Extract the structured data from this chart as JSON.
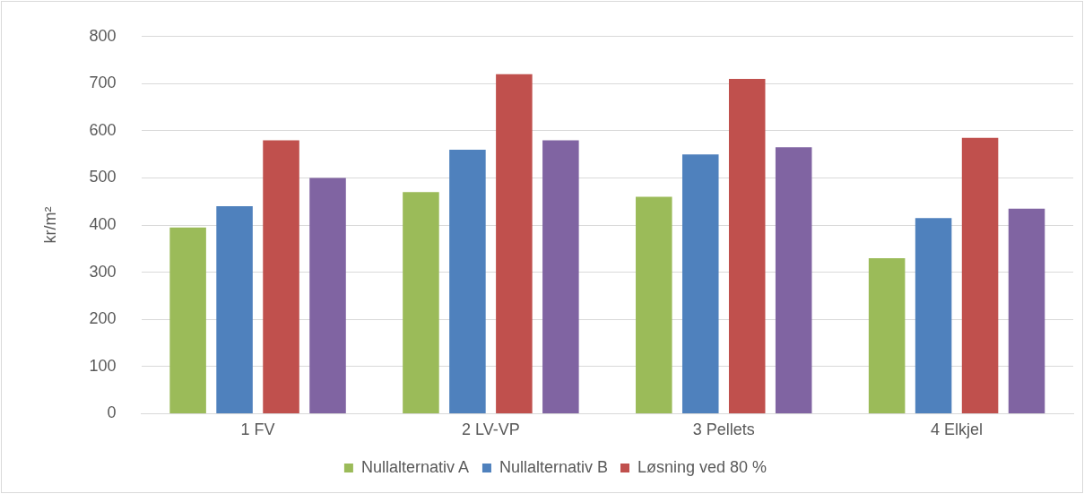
{
  "chart_data": {
    "type": "bar",
    "ylabel": "kr/m²",
    "categories": [
      "1 FV",
      "2 LV-VP",
      "3 Pellets",
      "4 Elkjel"
    ],
    "series": [
      {
        "name": "Nullalternativ A",
        "color": "#9bbb59",
        "values": [
          395,
          470,
          460,
          330
        ]
      },
      {
        "name": "Nullalternativ B",
        "color": "#4f81bd",
        "values": [
          440,
          560,
          550,
          415
        ]
      },
      {
        "name": "Løsning ved 80 %",
        "color": "#c0504d",
        "values": [
          580,
          720,
          710,
          585
        ]
      },
      {
        "color": "#8064a2",
        "values": [
          500,
          580,
          565,
          435
        ]
      }
    ],
    "ylim": [
      0,
      800
    ],
    "yticks": [
      0,
      100,
      200,
      300,
      400,
      500,
      600,
      700,
      800
    ],
    "grid": "y",
    "legend": "bottom"
  }
}
